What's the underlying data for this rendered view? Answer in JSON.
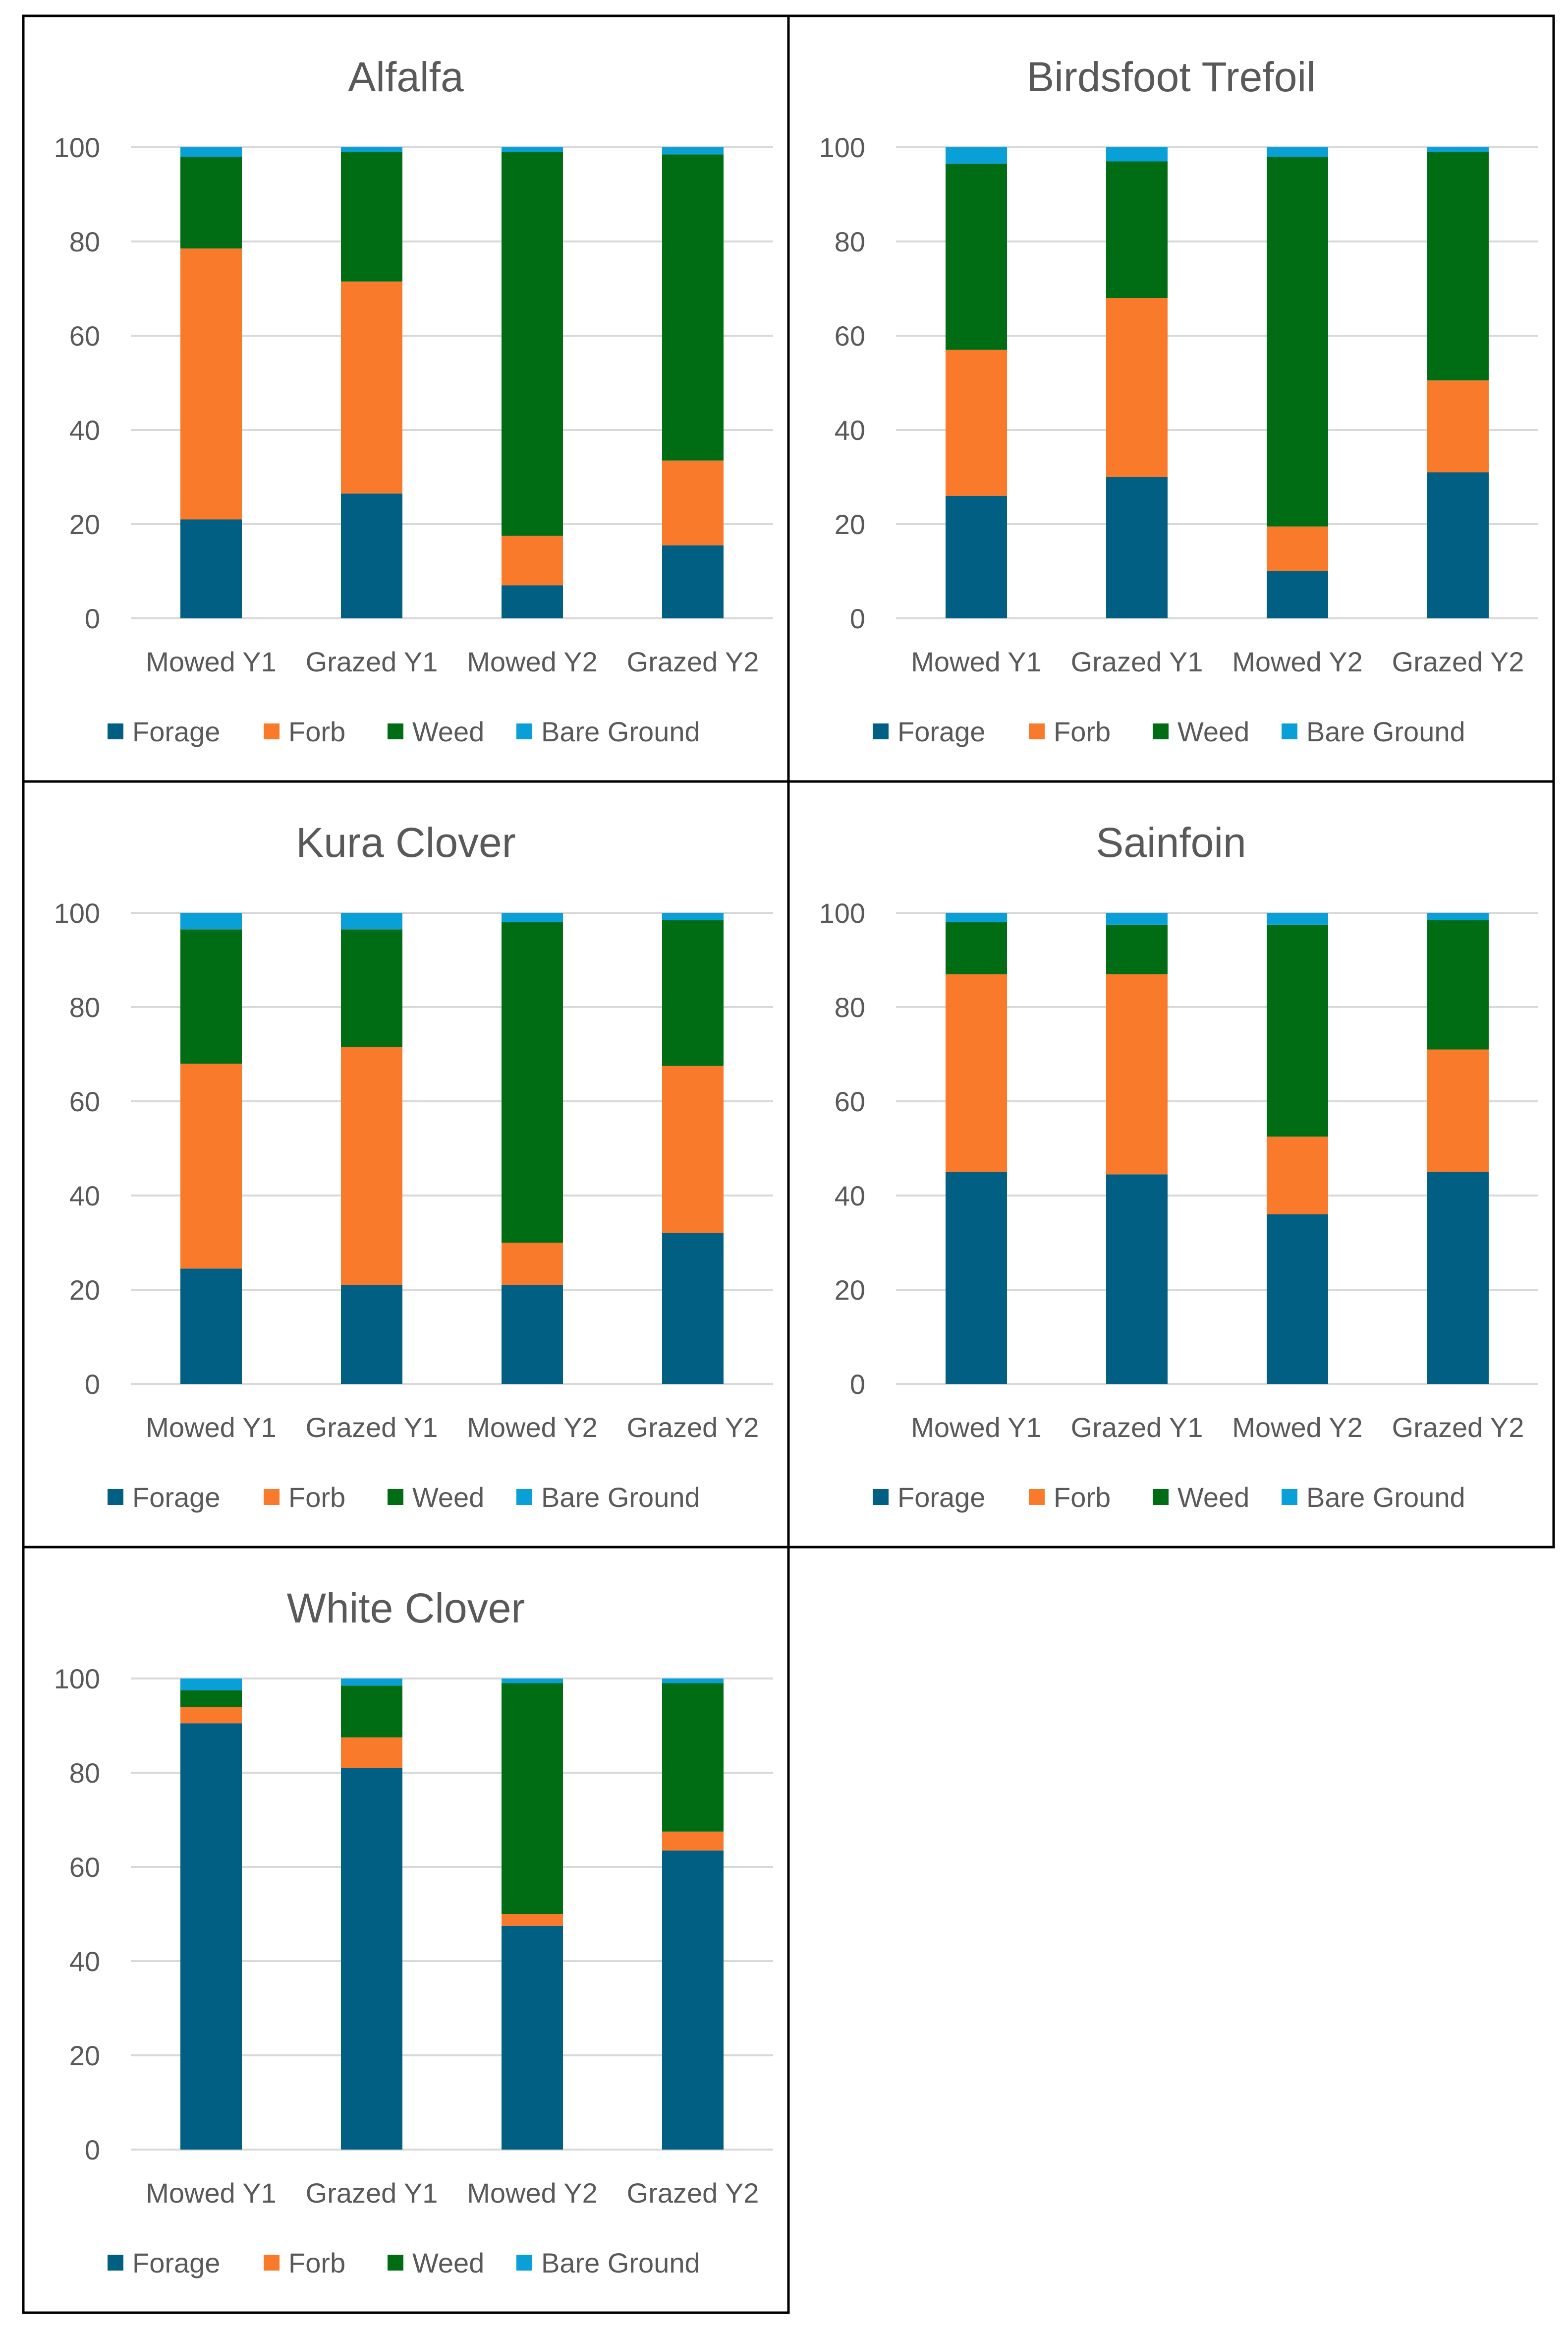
{
  "series_names": [
    "Forage",
    "Forb",
    "Weed",
    "Bare Ground"
  ],
  "colors": {
    "Forage": "#005f83",
    "Forb": "#f97a2b",
    "Weed": "#006c14",
    "Bare Ground": "#09a0d8"
  },
  "chart_data": [
    {
      "type": "bar",
      "stacked": true,
      "title": "Alfalfa",
      "categories": [
        "Mowed Y1",
        "Grazed Y1",
        "Mowed Y2",
        "Grazed Y2"
      ],
      "y_ticks": [
        "0",
        "20",
        "40",
        "60",
        "80",
        "100"
      ],
      "ylim": [
        0,
        100
      ],
      "legend": "bottom",
      "series": [
        {
          "name": "Forage",
          "values": [
            21,
            26.5,
            7,
            15.5
          ]
        },
        {
          "name": "Forb",
          "values": [
            57.5,
            45,
            10.5,
            18
          ]
        },
        {
          "name": "Weed",
          "values": [
            19.5,
            27.5,
            81.5,
            65
          ]
        },
        {
          "name": "Bare Ground",
          "values": [
            2,
            1,
            1,
            1.5
          ]
        }
      ]
    },
    {
      "type": "bar",
      "stacked": true,
      "title": "Birdsfoot Trefoil",
      "categories": [
        "Mowed Y1",
        "Grazed Y1",
        "Mowed Y2",
        "Grazed Y2"
      ],
      "y_ticks": [
        "0",
        "20",
        "40",
        "60",
        "80",
        "100"
      ],
      "ylim": [
        0,
        100
      ],
      "legend": "bottom",
      "series": [
        {
          "name": "Forage",
          "values": [
            26,
            30,
            10,
            31
          ]
        },
        {
          "name": "Forb",
          "values": [
            31,
            38,
            9.5,
            19.5
          ]
        },
        {
          "name": "Weed",
          "values": [
            39.5,
            29,
            78.5,
            48.5
          ]
        },
        {
          "name": "Bare Ground",
          "values": [
            3.5,
            3,
            2,
            1
          ]
        }
      ]
    },
    {
      "type": "bar",
      "stacked": true,
      "title": "Kura Clover",
      "categories": [
        "Mowed Y1",
        "Grazed Y1",
        "Mowed Y2",
        "Grazed Y2"
      ],
      "y_ticks": [
        "0",
        "20",
        "40",
        "60",
        "80",
        "100"
      ],
      "ylim": [
        0,
        100
      ],
      "legend": "bottom",
      "series": [
        {
          "name": "Forage",
          "values": [
            24.5,
            21,
            21,
            32
          ]
        },
        {
          "name": "Forb",
          "values": [
            43.5,
            50.5,
            9,
            35.5
          ]
        },
        {
          "name": "Weed",
          "values": [
            28.5,
            25,
            68,
            31
          ]
        },
        {
          "name": "Bare Ground",
          "values": [
            3.5,
            3.5,
            2,
            1.5
          ]
        }
      ]
    },
    {
      "type": "bar",
      "stacked": true,
      "title": "Sainfoin",
      "categories": [
        "Mowed Y1",
        "Grazed Y1",
        "Mowed Y2",
        "Grazed Y2"
      ],
      "y_ticks": [
        "0",
        "20",
        "40",
        "60",
        "80",
        "100"
      ],
      "ylim": [
        0,
        100
      ],
      "legend": "bottom",
      "series": [
        {
          "name": "Forage",
          "values": [
            45,
            44.5,
            36,
            45
          ]
        },
        {
          "name": "Forb",
          "values": [
            42,
            42.5,
            16.5,
            26
          ]
        },
        {
          "name": "Weed",
          "values": [
            11,
            10.5,
            45,
            27.5
          ]
        },
        {
          "name": "Bare Ground",
          "values": [
            2,
            2.5,
            2.5,
            1.5
          ]
        }
      ]
    },
    {
      "type": "bar",
      "stacked": true,
      "title": "White Clover",
      "categories": [
        "Mowed Y1",
        "Grazed Y1",
        "Mowed Y2",
        "Grazed Y2"
      ],
      "y_ticks": [
        "0",
        "20",
        "40",
        "60",
        "80",
        "100"
      ],
      "ylim": [
        0,
        100
      ],
      "legend": "bottom",
      "series": [
        {
          "name": "Forage",
          "values": [
            90.5,
            81,
            47.5,
            63.5
          ]
        },
        {
          "name": "Forb",
          "values": [
            3.5,
            6.5,
            2.5,
            4
          ]
        },
        {
          "name": "Weed",
          "values": [
            3.5,
            11,
            49,
            31.5
          ]
        },
        {
          "name": "Bare Ground",
          "values": [
            2.5,
            1.5,
            1,
            1
          ]
        }
      ]
    }
  ]
}
